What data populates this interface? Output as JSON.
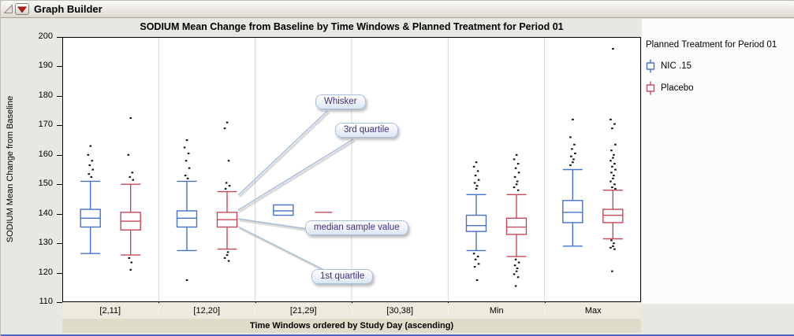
{
  "window": {
    "title": "Graph Builder"
  },
  "chart_data": {
    "type": "boxplot",
    "title": "SODIUM Mean Change from Baseline by Time Windows & Planned Treatment for Period 01",
    "ylabel": "SODIUM Mean Change from Baseline",
    "xlabel": "Time Windows ordered by Study Day (ascending)",
    "ylim": [
      110,
      200
    ],
    "yticks": [
      200,
      190,
      180,
      170,
      160,
      150,
      140,
      130,
      120,
      110
    ],
    "categories": [
      "[2,11]",
      "[12,20]",
      "[21,29]",
      "[30,38]",
      "Min",
      "Max"
    ],
    "legend_title": "Planned Treatment for Period 01",
    "grid": "vertical-category-dividers",
    "legend_position": "right",
    "series": [
      {
        "name": "NIC .15",
        "color": "#4472c8",
        "boxes": [
          {
            "high": 151,
            "q3": 141.5,
            "median": 138.5,
            "q1": 135.5,
            "low": 126.5,
            "out_hi": [
              163,
              160,
              158,
              156.5,
              155,
              153.5,
              152.5
            ],
            "out_lo": []
          },
          {
            "high": 151,
            "q3": 141,
            "median": 138.5,
            "q1": 135.5,
            "low": 127.5,
            "out_hi": [
              165,
              162.5,
              160.5,
              158,
              155.5,
              153,
              152
            ],
            "out_lo": [
              117.5
            ]
          },
          {
            "q3": 143,
            "median": 141,
            "q1": 139.5,
            "out_hi": [],
            "out_lo": []
          },
          null,
          {
            "high": 146.5,
            "q3": 139.5,
            "median": 136,
            "q1": 134,
            "low": 127.5,
            "out_hi": [
              157.5,
              156,
              154.5,
              153,
              151.5,
              150.5,
              149.5,
              148.5
            ],
            "out_lo": [
              126.5,
              125.5,
              124.5,
              123,
              122,
              117.5
            ]
          },
          {
            "high": 155,
            "q3": 144.5,
            "median": 140.5,
            "q1": 137,
            "low": 129,
            "out_hi": [
              172,
              166,
              163.5,
              162,
              160.5,
              159.5,
              158.5,
              157.5,
              156.5
            ],
            "out_lo": []
          }
        ]
      },
      {
        "name": "Placebo",
        "color": "#c4495a",
        "boxes": [
          {
            "high": 150,
            "q3": 140.5,
            "median": 137.5,
            "q1": 134.5,
            "low": 126,
            "out_hi": [
              172.5,
              160,
              154,
              152.5,
              151.5
            ],
            "out_lo": [
              125,
              123.5,
              121
            ]
          },
          {
            "high": 147.5,
            "q3": 140.5,
            "median": 138,
            "q1": 135.5,
            "low": 128,
            "out_hi": [
              171,
              169,
              158,
              150.5,
              149.5,
              148.5
            ],
            "out_lo": [
              127,
              126,
              125,
              124
            ]
          },
          {
            "median": 140.5,
            "out_hi": [],
            "out_lo": []
          },
          null,
          {
            "high": 146.5,
            "q3": 138.5,
            "median": 135.5,
            "q1": 133,
            "low": 125.5,
            "out_hi": [
              160,
              158.5,
              157,
              155.5,
              154,
              152.5,
              151,
              150,
              149,
              148
            ],
            "out_lo": [
              124.5,
              123.5,
              122.5,
              121.5,
              120.5,
              119.5,
              118.5,
              115.5
            ]
          },
          {
            "high": 148,
            "q3": 141.5,
            "median": 139.5,
            "q1": 137,
            "low": 131.5,
            "out_hi": [
              196,
              172,
              170.5,
              169,
              163.5,
              161.5,
              160,
              159,
              158,
              157,
              156,
              155,
              154,
              153,
              152,
              151,
              150,
              149,
              148.5
            ],
            "out_lo": [
              131,
              130,
              129,
              128.5,
              128,
              120.5
            ]
          }
        ]
      }
    ],
    "annotations": [
      {
        "label": "Whisker"
      },
      {
        "label": "3rd quartile"
      },
      {
        "label": "median sample value"
      },
      {
        "label": "1st quartile"
      }
    ]
  }
}
